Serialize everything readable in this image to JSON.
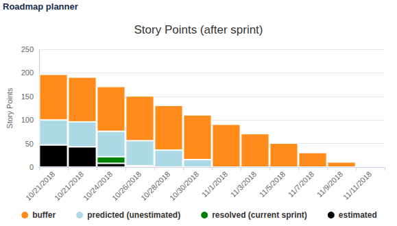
{
  "page_title": "Roadmap planner",
  "chart_data": {
    "type": "bar",
    "title": "Story Points (after sprint)",
    "y_label": "Story Points",
    "categories": [
      "10/21/2018",
      "10/21/2018",
      "10/24/2018",
      "10/26/2018",
      "10/28/2018",
      "10/30/2018",
      "11/1/2018",
      "11/3/2018",
      "11/5/2018",
      "11/7/2018",
      "11/9/2018",
      "11/11/2018"
    ],
    "series": [
      {
        "name": "buffer",
        "color": "#ff8c1a",
        "values": [
          97,
          95,
          95,
          95,
          95,
          95,
          91,
          71,
          51,
          31,
          11,
          null
        ]
      },
      {
        "name": "predicted (unestimated)",
        "color": "#add8e6",
        "values": [
          53,
          53,
          54,
          53,
          36,
          16,
          null,
          null,
          null,
          null,
          null,
          null
        ]
      },
      {
        "name": "resolved (current sprint)",
        "color": "#008000",
        "values": [
          null,
          null,
          14,
          null,
          null,
          null,
          null,
          null,
          null,
          null,
          null,
          null
        ]
      },
      {
        "name": "estimated",
        "color": "#000000",
        "values": [
          47,
          43,
          8,
          3,
          null,
          null,
          null,
          null,
          null,
          null,
          null,
          null
        ]
      }
    ],
    "stacked": true,
    "ylim": [
      0,
      250
    ],
    "yticks": [
      0,
      50,
      100,
      150,
      200,
      250
    ],
    "grid": true,
    "legend": "bottom"
  }
}
